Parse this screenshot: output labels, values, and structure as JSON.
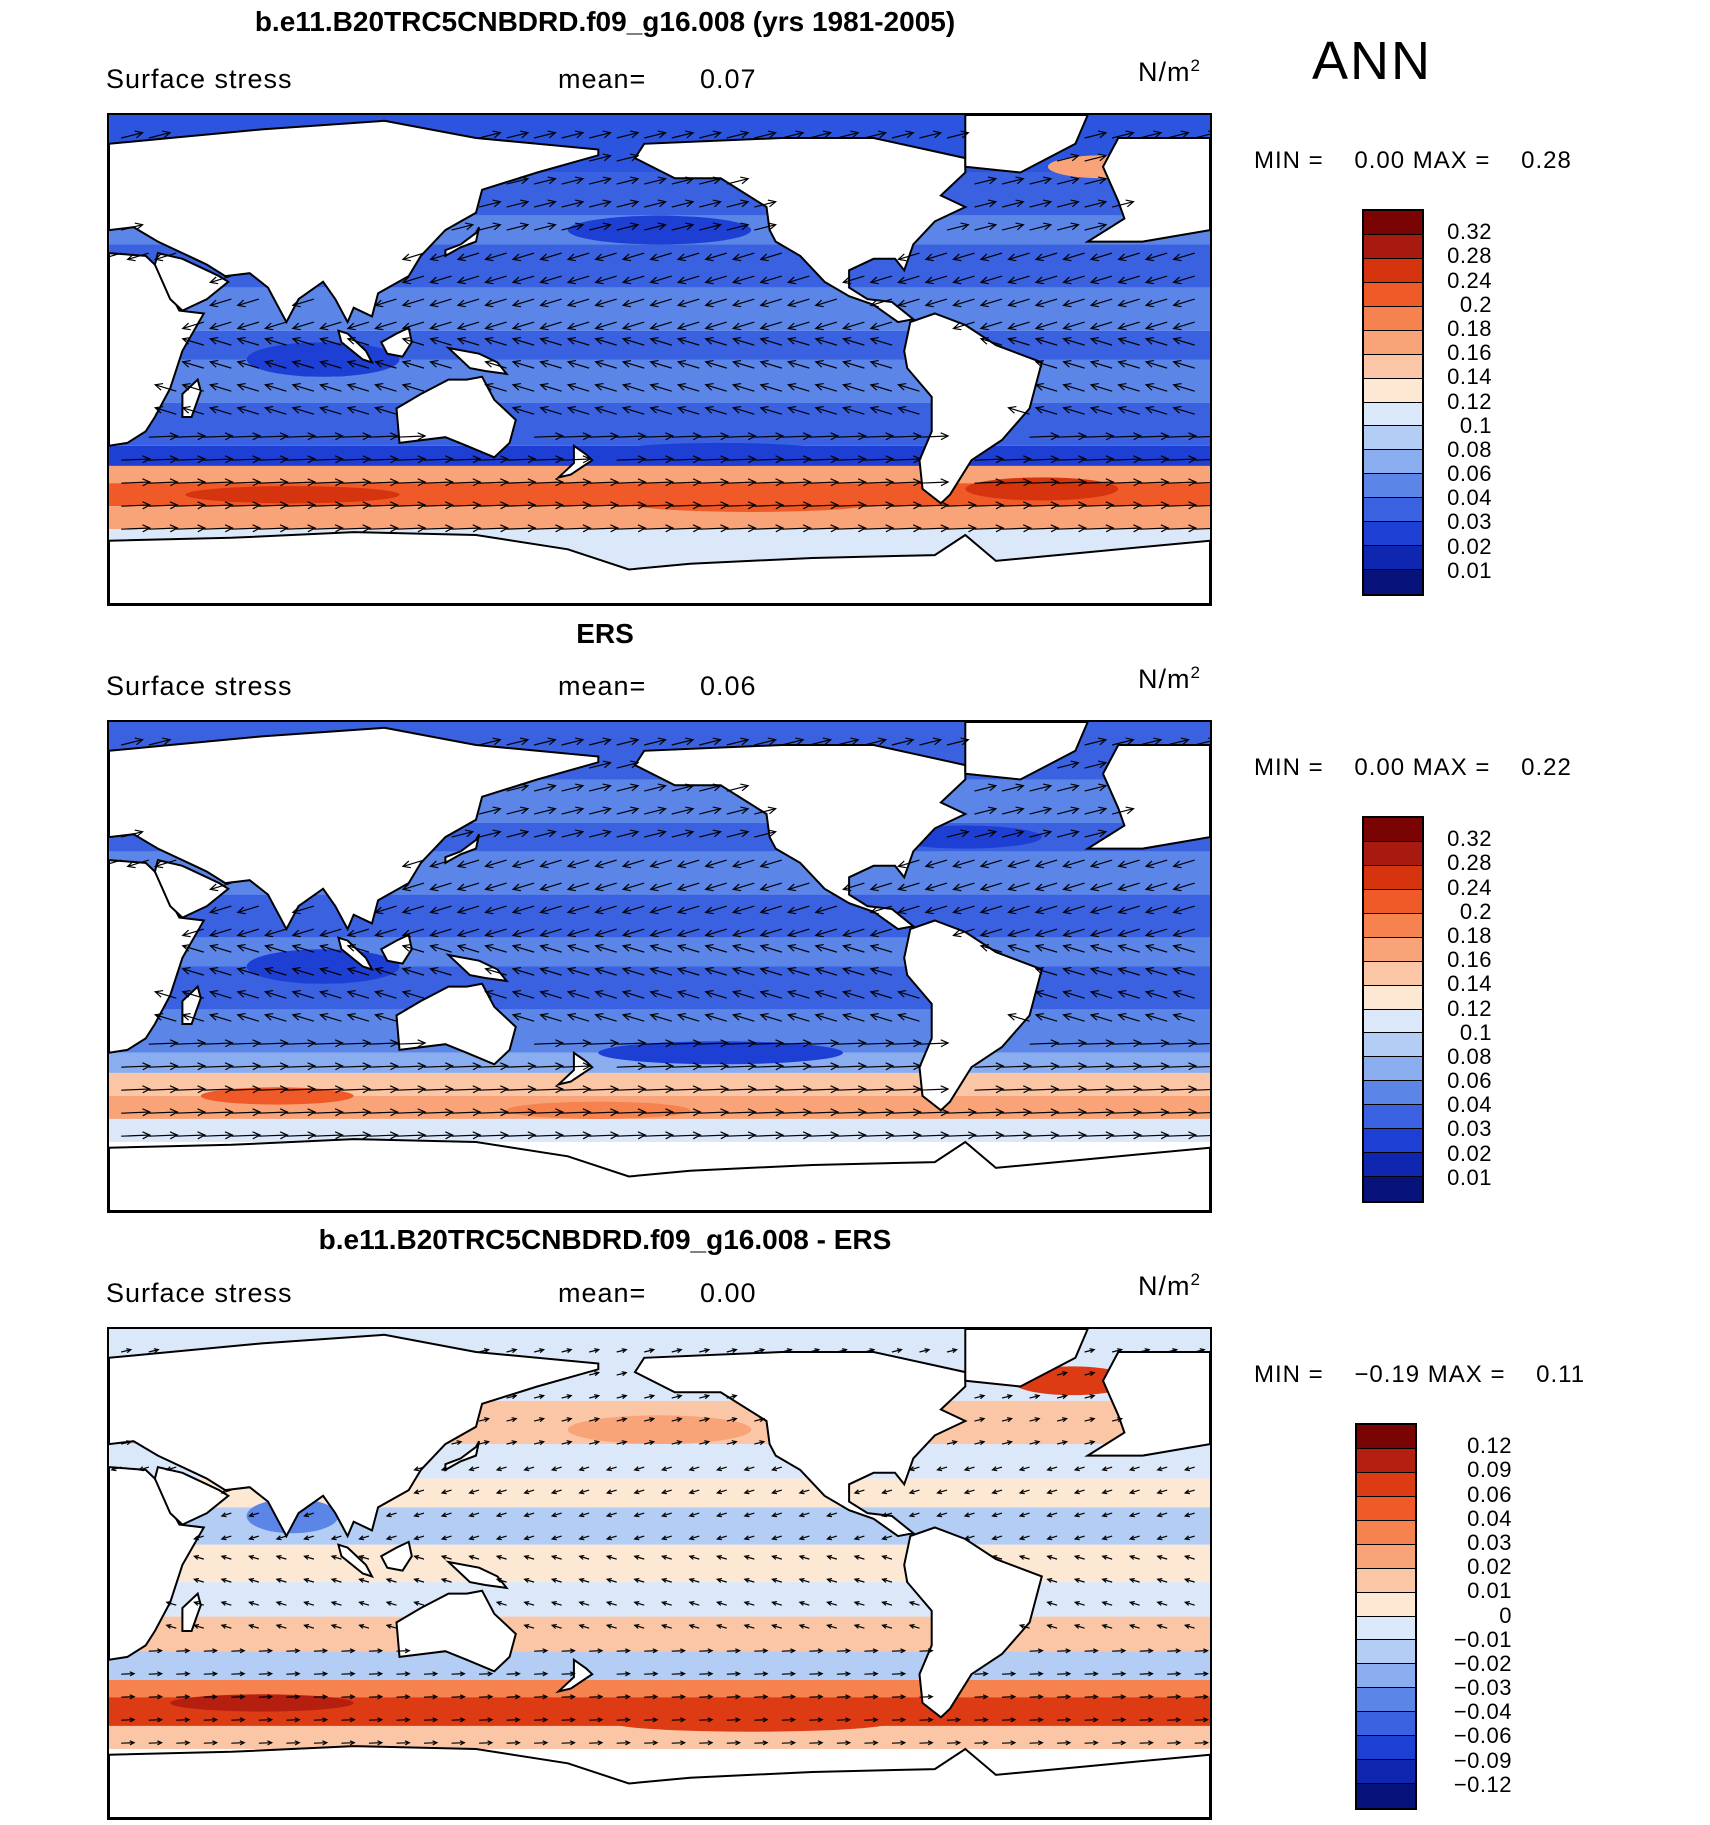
{
  "season": "ANN",
  "panels": [
    {
      "title": "b.e11.B20TRC5CNBDRD.f09_g16.008 (yrs 1981-2005)",
      "variable": "Surface stress",
      "mean_label": "mean=",
      "mean_value": "0.07",
      "units_base": "N/m",
      "units_exp": "2",
      "stats": {
        "min_label": "MIN =",
        "min_value": "0.00",
        "max_label": "MAX =",
        "max_value": "0.28"
      },
      "colorbar": {
        "labels": [
          "0.32",
          "0.28",
          "0.24",
          "0.2",
          "0.18",
          "0.16",
          "0.14",
          "0.12",
          "0.1",
          "0.08",
          "0.06",
          "0.04",
          "0.03",
          "0.02",
          "0.01"
        ],
        "colors": [
          "#7a0403",
          "#a81a0f",
          "#d6330f",
          "#ef5a28",
          "#f5824f",
          "#f8a478",
          "#fbc6a5",
          "#fde8d4",
          "#dbe8fa",
          "#b3cdf5",
          "#89adef",
          "#5b86e8",
          "#3a62e0",
          "#1e3fd4",
          "#0f26b0",
          "#07137a"
        ]
      },
      "map_field": "model"
    },
    {
      "title": "ERS",
      "variable": "Surface stress",
      "mean_label": "mean=",
      "mean_value": "0.06",
      "units_base": "N/m",
      "units_exp": "2",
      "stats": {
        "min_label": "MIN =",
        "min_value": "0.00",
        "max_label": "MAX =",
        "max_value": "0.22"
      },
      "colorbar": {
        "labels": [
          "0.32",
          "0.28",
          "0.24",
          "0.2",
          "0.18",
          "0.16",
          "0.14",
          "0.12",
          "0.1",
          "0.08",
          "0.06",
          "0.04",
          "0.03",
          "0.02",
          "0.01"
        ],
        "colors": [
          "#7a0403",
          "#a81a0f",
          "#d6330f",
          "#ef5a28",
          "#f5824f",
          "#f8a478",
          "#fbc6a5",
          "#fde8d4",
          "#dbe8fa",
          "#b3cdf5",
          "#89adef",
          "#5b86e8",
          "#3a62e0",
          "#1e3fd4",
          "#0f26b0",
          "#07137a"
        ]
      },
      "map_field": "obs"
    },
    {
      "title": "b.e11.B20TRC5CNBDRD.f09_g16.008 - ERS",
      "variable": "Surface stress",
      "mean_label": "mean=",
      "mean_value": "0.00",
      "units_base": "N/m",
      "units_exp": "2",
      "stats": {
        "min_label": "MIN =",
        "min_value": "−0.19",
        "max_label": "MAX =",
        "max_value": "0.11"
      },
      "colorbar": {
        "labels": [
          "0.12",
          "0.09",
          "0.06",
          "0.04",
          "0.03",
          "0.02",
          "0.01",
          "0",
          "−0.01",
          "−0.02",
          "−0.03",
          "−0.04",
          "−0.06",
          "−0.09",
          "−0.12"
        ],
        "colors": [
          "#7a0403",
          "#b51f10",
          "#dd3b14",
          "#ef5a28",
          "#f5824f",
          "#f8a478",
          "#fbc6a5",
          "#fde8d4",
          "#dbe8fa",
          "#b3cdf5",
          "#89adef",
          "#5b86e8",
          "#3a62e0",
          "#1e3fd4",
          "#0f26b0",
          "#07137a"
        ]
      },
      "map_field": "diff"
    }
  ]
}
